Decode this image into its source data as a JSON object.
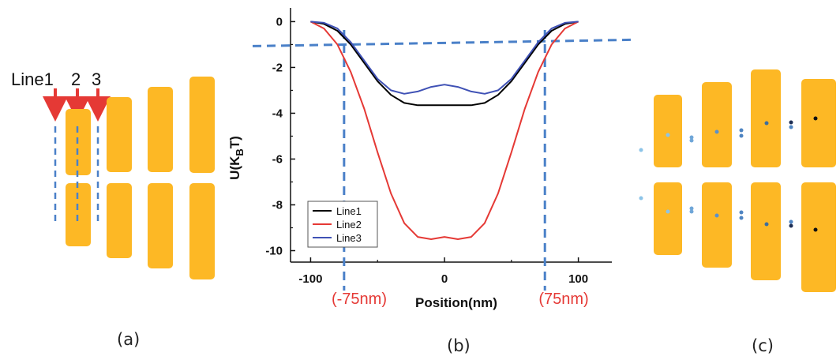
{
  "panels": {
    "a": {
      "caption": "(a)",
      "line_labels": [
        "Line1",
        "2",
        "3"
      ]
    },
    "b": {
      "caption": "(b)",
      "left_marker": "(-75nm)",
      "right_marker": "(75nm)"
    },
    "c": {
      "caption": "(c)"
    }
  },
  "colors": {
    "bar_fill": "#FDB825",
    "arrow": "#E53935",
    "dashed": "#4A80C8",
    "marker_text": "#E53935"
  },
  "chart_data": {
    "type": "line",
    "title": "",
    "xlabel": "Position(nm)",
    "ylabel": "U(K_BT)",
    "xlim": [
      -115,
      125
    ],
    "ylim": [
      -10.5,
      0.6
    ],
    "xticks": [
      -100,
      0,
      100
    ],
    "yticks": [
      0,
      -2,
      -4,
      -6,
      -8,
      -10
    ],
    "grid": false,
    "legend_position": "bottom-left",
    "reference_lines": {
      "vertical_x": [
        -75,
        75
      ],
      "horizontal_y": -1
    },
    "series": [
      {
        "name": "Line1",
        "color": "#000000",
        "x": [
          -100,
          -90,
          -80,
          -70,
          -60,
          -50,
          -40,
          -30,
          -20,
          -10,
          0,
          10,
          20,
          30,
          40,
          50,
          60,
          70,
          80,
          90,
          100
        ],
        "y": [
          0,
          -0.1,
          -0.4,
          -1.0,
          -1.8,
          -2.6,
          -3.2,
          -3.55,
          -3.65,
          -3.65,
          -3.65,
          -3.65,
          -3.65,
          -3.55,
          -3.2,
          -2.6,
          -1.8,
          -1.0,
          -0.4,
          -0.1,
          0
        ]
      },
      {
        "name": "Line2",
        "color": "#E53935",
        "x": [
          -100,
          -90,
          -80,
          -70,
          -60,
          -50,
          -40,
          -30,
          -20,
          -10,
          0,
          10,
          20,
          30,
          40,
          50,
          60,
          70,
          80,
          90,
          100
        ],
        "y": [
          0,
          -0.3,
          -1.0,
          -2.2,
          -3.8,
          -5.7,
          -7.5,
          -8.8,
          -9.4,
          -9.5,
          -9.4,
          -9.5,
          -9.4,
          -8.8,
          -7.5,
          -5.7,
          -3.8,
          -2.2,
          -1.0,
          -0.3,
          0
        ]
      },
      {
        "name": "Line3",
        "color": "#3F51B5",
        "x": [
          -100,
          -90,
          -80,
          -70,
          -60,
          -50,
          -40,
          -30,
          -20,
          -10,
          0,
          10,
          20,
          30,
          40,
          50,
          60,
          70,
          80,
          90,
          100
        ],
        "y": [
          0,
          -0.05,
          -0.3,
          -0.9,
          -1.7,
          -2.5,
          -3.0,
          -3.15,
          -3.05,
          -2.85,
          -2.75,
          -2.85,
          -3.05,
          -3.15,
          -3.0,
          -2.5,
          -1.7,
          -0.9,
          -0.3,
          -0.05,
          0
        ]
      }
    ]
  }
}
